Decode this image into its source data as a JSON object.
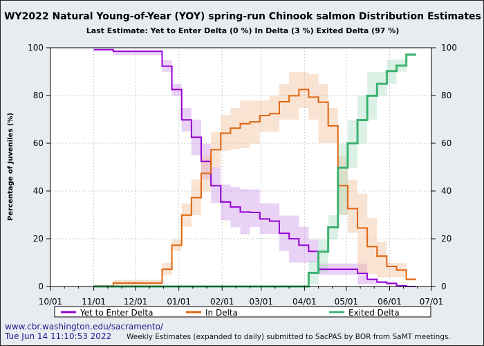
{
  "chart_data": {
    "type": "line",
    "title": "WY2022 Natural Young-of-Year (YOY) spring-run Chinook salmon Distribution Estimates",
    "subtitle": "Last Estimate:  Yet to Enter Delta (0 %) In Delta (3 %) Exited Delta (97 %)",
    "ylabel": "Percentage of Juveniles (%)",
    "xlabel": "",
    "xlim": [
      "2021-10-01",
      "2022-07-01"
    ],
    "ylim": [
      0,
      100
    ],
    "x_ticks": [
      "10/01",
      "11/01",
      "12/01",
      "01/01",
      "02/01",
      "03/01",
      "04/01",
      "05/01",
      "06/01",
      "07/01"
    ],
    "x_tick_dates": [
      "2021-10-01",
      "2021-11-01",
      "2021-12-01",
      "2022-01-01",
      "2022-02-01",
      "2022-03-01",
      "2022-04-01",
      "2022-05-01",
      "2022-06-01",
      "2022-07-01"
    ],
    "y_ticks": [
      0,
      20,
      40,
      60,
      80,
      100
    ],
    "grid": true,
    "legend_placement": "bottom",
    "step_dates": [
      "2021-11-01",
      "2021-11-08",
      "2021-11-15",
      "2021-11-22",
      "2021-11-29",
      "2021-12-06",
      "2021-12-13",
      "2021-12-20",
      "2021-12-27",
      "2022-01-03",
      "2022-01-10",
      "2022-01-17",
      "2022-01-24",
      "2022-01-31",
      "2022-02-07",
      "2022-02-14",
      "2022-02-21",
      "2022-02-28",
      "2022-03-07",
      "2022-03-14",
      "2022-03-21",
      "2022-03-28",
      "2022-04-04",
      "2022-04-11",
      "2022-04-18",
      "2022-04-25",
      "2022-05-02",
      "2022-05-09",
      "2022-05-16",
      "2022-05-23",
      "2022-05-30",
      "2022-06-06",
      "2022-06-13"
    ],
    "end_date": "2022-06-20",
    "series": [
      {
        "name": "Yet to Enter Delta",
        "color": "#9400d3",
        "band_color": "#c78ee8",
        "values": [
          99.2,
          99.2,
          98.5,
          98.5,
          98.5,
          98.5,
          98.5,
          92.3,
          82.5,
          69.8,
          62.5,
          52.4,
          42.2,
          35.4,
          33.3,
          31.2,
          31.0,
          28.3,
          27.4,
          22.3,
          20.0,
          17.3,
          14.7,
          7.2,
          7.2,
          7.2,
          7.2,
          5.5,
          3.0,
          1.8,
          1.3,
          0.3,
          0.0
        ],
        "lower": [
          99.2,
          99.2,
          97,
          97,
          97,
          97,
          97,
          89.9,
          79.8,
          64.9,
          55,
          44.8,
          35,
          27.7,
          24.8,
          21.9,
          24.9,
          22,
          22,
          14.9,
          10,
          10,
          10,
          4.9,
          4.9,
          4.9,
          4.9,
          0.9,
          0.9,
          1.3,
          0.8,
          0,
          0
        ],
        "upper": [
          99.5,
          99.5,
          98.8,
          98.8,
          98.8,
          98.8,
          98.8,
          94.8,
          84.9,
          74.8,
          69.9,
          59.8,
          49.9,
          42.7,
          41.7,
          40.8,
          40.6,
          34.8,
          34.8,
          29.7,
          29.7,
          25,
          19.7,
          9.6,
          9.6,
          9.6,
          9.6,
          9.6,
          2.9,
          2.3,
          1.8,
          0.8,
          0.3
        ]
      },
      {
        "name": "In Delta",
        "color": "#e0650f",
        "band_color": "#f0b88e",
        "values": [
          0.2,
          0.2,
          1.4,
          1.4,
          1.4,
          1.4,
          1.4,
          7.2,
          17.3,
          29.9,
          37.2,
          47.4,
          57.3,
          64.2,
          66.3,
          68.2,
          69.0,
          71.6,
          72.4,
          77.4,
          79.9,
          82.5,
          79.3,
          77.2,
          67.3,
          42.2,
          32.6,
          24.5,
          16.7,
          12.7,
          8.4,
          6.9,
          3.0
        ],
        "lower": [
          0,
          0,
          0.4,
          0.4,
          0.4,
          0.4,
          0.4,
          4.7,
          14.9,
          25,
          29.9,
          39.8,
          49.9,
          56.9,
          57.4,
          58,
          59.8,
          64.8,
          64.8,
          69.9,
          69.9,
          74.8,
          69.9,
          60,
          60,
          30,
          22.5,
          5.2,
          5.2,
          3.8,
          3.8,
          3.8,
          2.5
        ],
        "upper": [
          0.5,
          0.5,
          2.8,
          2.8,
          2.8,
          2.8,
          2.8,
          9.9,
          19.7,
          34.7,
          44.8,
          54.8,
          64.8,
          71.8,
          74.8,
          77.9,
          77.9,
          77.9,
          79.9,
          84.9,
          89.9,
          89.9,
          89,
          84.9,
          74.8,
          54.8,
          44.7,
          38.8,
          28.7,
          18.7,
          9.8,
          9.8,
          3.5
        ]
      },
      {
        "name": "Exited Delta",
        "color": "#3cb371",
        "band_color": "#a8dcbd",
        "values": [
          0,
          0,
          0,
          0,
          0,
          0,
          0,
          0,
          0,
          0,
          0,
          0,
          0,
          0,
          0,
          0,
          0,
          0,
          0,
          0,
          0,
          0,
          5.7,
          14.6,
          24.8,
          49.8,
          60,
          69.7,
          79.9,
          84.9,
          90.2,
          92.5,
          97.1
        ],
        "lower": [
          0,
          0,
          0,
          0,
          0,
          0,
          0,
          0,
          0,
          0,
          0,
          0,
          0,
          0,
          0,
          0,
          0,
          0,
          0,
          0,
          0,
          0,
          0.9,
          5.7,
          19.7,
          29.9,
          49.7,
          59.8,
          69.9,
          79.9,
          84.9,
          89.9,
          96.6
        ],
        "upper": [
          0,
          0,
          0,
          0,
          0,
          0,
          0,
          0,
          0,
          0,
          0,
          0,
          0,
          0,
          0,
          0,
          0,
          0,
          0,
          0,
          0,
          0,
          10.7,
          19.7,
          29.9,
          59.8,
          69.7,
          79.9,
          89.9,
          89.9,
          95.1,
          95.1,
          97.6
        ]
      }
    ]
  },
  "footer": {
    "url": "www.cbr.washington.edu/sacramento/",
    "timestamp": "Tue Jun 14 11:10:53 2022",
    "note": "Weekly Estimates (expanded to daily) submitted to SacPAS by BOR from SaMT meetings."
  }
}
